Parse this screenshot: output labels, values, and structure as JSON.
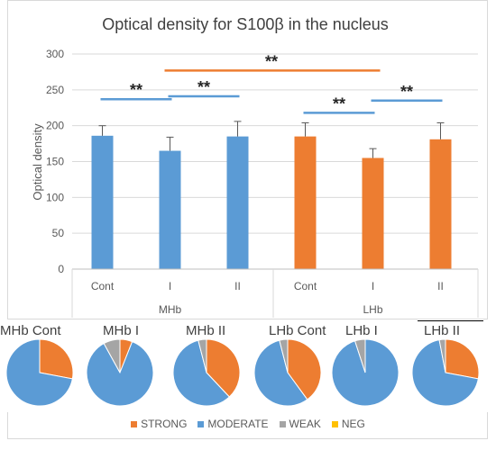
{
  "chart_data": [
    {
      "type": "bar",
      "title": "Optical density for S100β in the nucleus",
      "ylabel": "Optical density",
      "xlabel": "",
      "ylim": [
        0,
        300
      ],
      "yticks": [
        0,
        50,
        100,
        150,
        200,
        250,
        300
      ],
      "grid": true,
      "groups": [
        {
          "name": "MHb",
          "color": "#5b9bd5",
          "categories": [
            "Cont",
            "I",
            "II"
          ],
          "values": [
            186,
            165,
            185
          ],
          "errors": [
            14,
            19,
            21
          ]
        },
        {
          "name": "LHb",
          "color": "#ed7d31",
          "categories": [
            "Cont",
            "I",
            "II"
          ],
          "values": [
            185,
            155,
            181
          ],
          "errors": [
            19,
            13,
            23
          ]
        }
      ],
      "annotations": [
        {
          "label": "**",
          "from": "MHb Cont",
          "to": "MHb I",
          "y": 237,
          "color": "#5b9bd5"
        },
        {
          "label": "**",
          "from": "MHb I",
          "to": "MHb II",
          "y": 241,
          "color": "#5b9bd5"
        },
        {
          "label": "**",
          "from": "MHb I",
          "to": "LHb I",
          "y": 277,
          "color": "#ed7d31"
        },
        {
          "label": "**",
          "from": "LHb Cont",
          "to": "LHb I",
          "y": 218,
          "color": "#5b9bd5"
        },
        {
          "label": "**",
          "from": "LHb I",
          "to": "LHb II",
          "y": 235,
          "color": "#5b9bd5"
        }
      ]
    },
    {
      "type": "pie",
      "legend_position": "bottom",
      "legend": [
        "STRONG",
        "MODERATE",
        "WEAK",
        "NEG"
      ],
      "colors": [
        "#ed7d31",
        "#5b9bd5",
        "#a5a5a5",
        "#ffc000"
      ],
      "pies": [
        {
          "title": "MHb Cont",
          "values": [
            28,
            72,
            0,
            0
          ]
        },
        {
          "title": "MHb I",
          "values": [
            6,
            86,
            8,
            0
          ]
        },
        {
          "title": "MHb II",
          "values": [
            38,
            58,
            4,
            0
          ]
        },
        {
          "title": "LHb Cont",
          "values": [
            40,
            56,
            4,
            0
          ]
        },
        {
          "title": "LHb I",
          "values": [
            0,
            95,
            5,
            0
          ]
        },
        {
          "title": "LHb II",
          "values": [
            28,
            69,
            3,
            0
          ]
        }
      ]
    }
  ]
}
